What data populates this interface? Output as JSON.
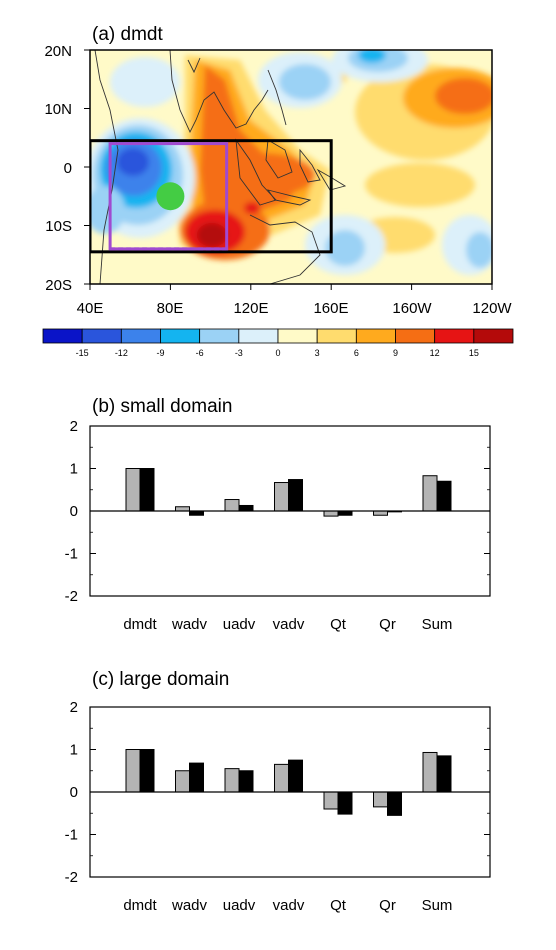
{
  "panels": {
    "a": {
      "title": "(a)  dmdt"
    },
    "b": {
      "title": "(b)  small domain"
    },
    "c": {
      "title": "(c)  large domain"
    }
  },
  "map": {
    "lat_labels": [
      "20N",
      "10N",
      "0",
      "10S",
      "20S"
    ],
    "lon_labels": [
      "40E",
      "80E",
      "120E",
      "160E",
      "160W",
      "120W"
    ],
    "extent": {
      "lon": [
        40,
        240
      ],
      "lat": [
        -20,
        20
      ]
    },
    "boxes": [
      {
        "name": "large domain",
        "lon": [
          40,
          160
        ],
        "lat": [
          -14.5,
          4.5
        ],
        "color": "#000000",
        "style": "solid"
      },
      {
        "name": "small domain",
        "lon": [
          50,
          108
        ],
        "lat": [
          -14,
          4
        ],
        "color": "#a04ad0",
        "style": "solid-dashed"
      }
    ],
    "marker": {
      "lon": 80,
      "lat": -5,
      "color": "#44cc44"
    }
  },
  "colorbar": {
    "ticks": [
      "-15",
      "-12",
      "-9",
      "-6",
      "-3",
      "0",
      "3",
      "6",
      "9",
      "12",
      "15"
    ],
    "colors": [
      "#0a14c8",
      "#2a55dc",
      "#3c82eb",
      "#14b4f0",
      "#9bd2f5",
      "#dcf0fa",
      "#fffac8",
      "#ffdc6e",
      "#ffaa1e",
      "#f56e14",
      "#e61414",
      "#b40a0a"
    ]
  },
  "chart_data": [
    {
      "type": "bar",
      "panel": "b",
      "title": "(b)  small domain",
      "categories": [
        "dmdt",
        "wadv",
        "uadv",
        "vadv",
        "Qt",
        "Qr",
        "Sum"
      ],
      "series": [
        {
          "color": "#b4b4b4",
          "values": [
            1.0,
            0.1,
            0.27,
            0.67,
            -0.12,
            -0.1,
            0.83
          ]
        },
        {
          "color": "#000000",
          "values": [
            1.0,
            -0.1,
            0.13,
            0.74,
            -0.1,
            -0.02,
            0.7
          ]
        }
      ],
      "ylim": [
        -2,
        2
      ],
      "yticks": [
        "2",
        "1",
        "0",
        "-1",
        "-2"
      ]
    },
    {
      "type": "bar",
      "panel": "c",
      "title": "(c)  large domain",
      "categories": [
        "dmdt",
        "wadv",
        "uadv",
        "vadv",
        "Qt",
        "Qr",
        "Sum"
      ],
      "series": [
        {
          "color": "#b4b4b4",
          "values": [
            1.0,
            0.5,
            0.55,
            0.65,
            -0.4,
            -0.35,
            0.93
          ]
        },
        {
          "color": "#000000",
          "values": [
            1.0,
            0.68,
            0.5,
            0.75,
            -0.52,
            -0.55,
            0.85
          ]
        }
      ],
      "ylim": [
        -2,
        2
      ],
      "yticks": [
        "2",
        "1",
        "0",
        "-1",
        "-2"
      ]
    }
  ]
}
